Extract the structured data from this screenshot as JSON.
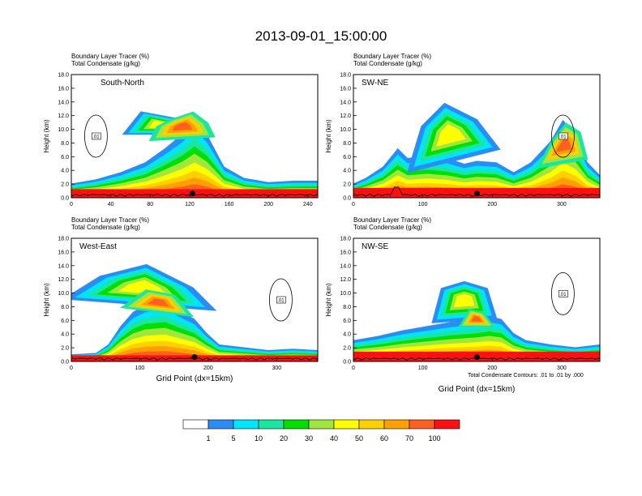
{
  "title": "2013-09-01_15:00:00",
  "footnote": "Total Condensate Contours: .01 to .01 by .000",
  "chart_data": [
    {
      "type": "contour",
      "panel": "South-North",
      "label": "South-North",
      "subtitle_1": "Boundary Layer Tracer   (%)",
      "subtitle_2": "Total Condensate   (g/kg)",
      "ylabel": "Height (km)",
      "xlabel": "",
      "xlim": [
        0,
        250
      ],
      "ylim": [
        0,
        18
      ],
      "xticks": [
        "0",
        "40",
        "80",
        "120",
        "160",
        "200",
        "240"
      ],
      "yticks": [
        "0.0",
        "2.0",
        "4.0",
        "6.0",
        "8.0",
        "10.0",
        "12.0",
        "14.0",
        "16.0",
        "18.0"
      ],
      "contour_label": ".01",
      "marker_x": 123
    },
    {
      "type": "contour",
      "panel": "SW-NE",
      "label": "SW-NE",
      "subtitle_1": "Boundary Layer Tracer   (%)",
      "subtitle_2": "Total Condensate   (g/kg)",
      "ylabel": "Height (km)",
      "xlabel": "",
      "xlim": [
        0,
        355
      ],
      "ylim": [
        0,
        18
      ],
      "xticks": [
        "0",
        "100",
        "200",
        "300"
      ],
      "yticks": [
        "0.0",
        "2.0",
        "4.0",
        "6.0",
        "8.0",
        "10.0",
        "12.0",
        "14.0",
        "16.0",
        "18.0"
      ],
      "contour_label": ".01",
      "marker_x": 178
    },
    {
      "type": "contour",
      "panel": "West-East",
      "label": "West-East",
      "subtitle_1": "Boundary Layer Tracer   (%)",
      "subtitle_2": "Total Condensate   (g/kg)",
      "ylabel": "Height (km)",
      "xlabel": "Grid Point (dx=15km)",
      "xlim": [
        0,
        360
      ],
      "ylim": [
        0,
        18
      ],
      "xticks": [
        "0",
        "100",
        "200",
        "300"
      ],
      "yticks": [
        "0.0",
        "2.0",
        "4.0",
        "6.0",
        "8.0",
        "10.0",
        "12.0",
        "14.0",
        "16.0",
        "18.0"
      ],
      "contour_label": ".01",
      "marker_x": 180
    },
    {
      "type": "contour",
      "panel": "NW-SE",
      "label": "NW-SE",
      "subtitle_1": "Boundary Layer Tracer   (%)",
      "subtitle_2": "Total Condensate   (g/kg)",
      "ylabel": "Height (km)",
      "xlabel": "Grid Point (dx=15km)",
      "xlim": [
        0,
        355
      ],
      "ylim": [
        0,
        18
      ],
      "xticks": [
        "0",
        "100",
        "200",
        "300"
      ],
      "yticks": [
        "0.0",
        "2.0",
        "4.0",
        "6.0",
        "8.0",
        "10.0",
        "12.0",
        "14.0",
        "16.0",
        "18.0"
      ],
      "contour_label": ".01",
      "marker_x": 178
    }
  ],
  "colorbar": {
    "levels": [
      "1",
      "5",
      "10",
      "20",
      "30",
      "40",
      "50",
      "60",
      "70",
      "100"
    ],
    "colors": [
      "#ffffff",
      "#2a8cf5",
      "#00e5ff",
      "#1ae6a0",
      "#00e000",
      "#a0e63c",
      "#ffff00",
      "#ffd000",
      "#ffa000",
      "#ff6020",
      "#ff1010"
    ]
  }
}
